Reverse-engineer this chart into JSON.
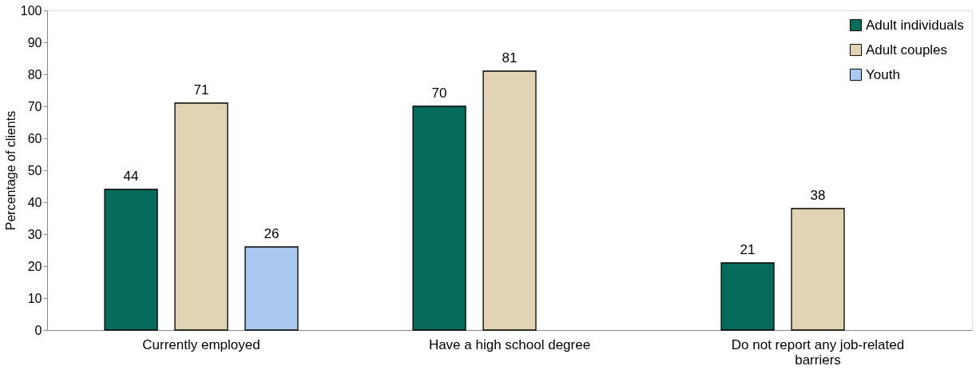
{
  "chart_data": {
    "type": "bar",
    "ylabel": "Percentage of clients",
    "categories": [
      "Currently employed",
      "Have a high school degree",
      "Do not report any job-related barriers"
    ],
    "series": [
      {
        "name": "Adult individuals",
        "color": "#066b5b",
        "values": [
          44,
          70,
          21
        ]
      },
      {
        "name": "Adult couples",
        "color": "#e1d4b5",
        "values": [
          71,
          81,
          38
        ]
      },
      {
        "name": "Youth",
        "color": "#a9c9f0",
        "values": [
          26,
          null,
          null
        ]
      }
    ],
    "ylim": [
      0,
      100
    ],
    "yticks": [
      0,
      10,
      20,
      30,
      40,
      50,
      60,
      70,
      80,
      90,
      100
    ],
    "grid": false,
    "legend": "top right",
    "data_labels": true
  }
}
